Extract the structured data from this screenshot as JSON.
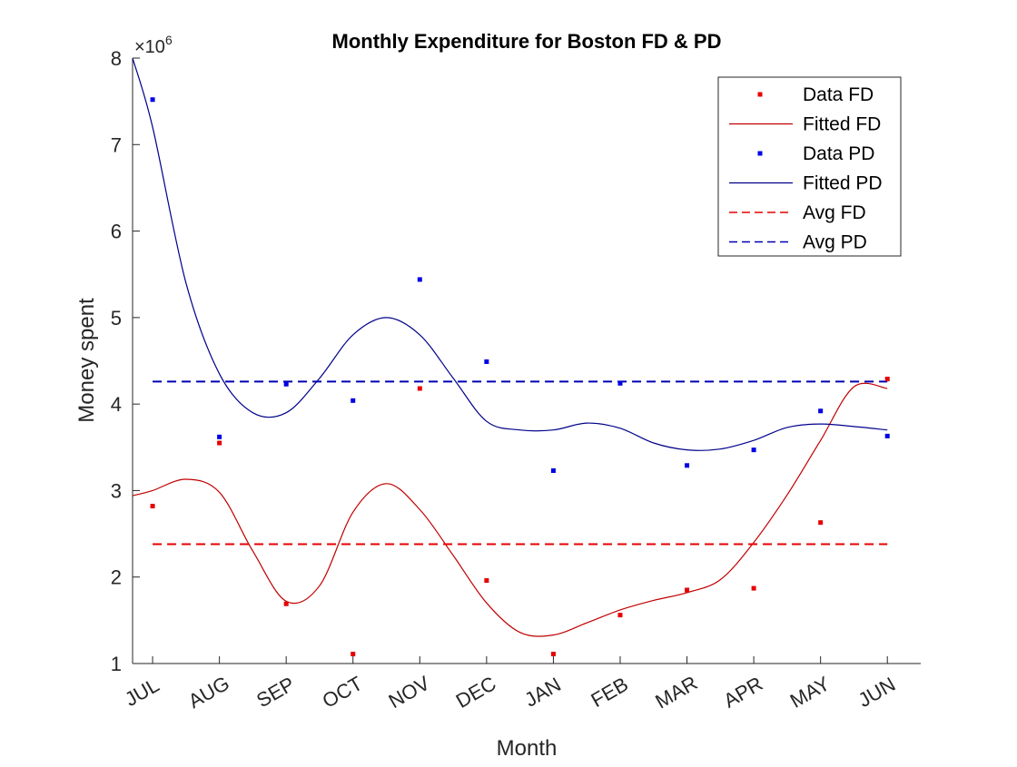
{
  "chart_data": {
    "type": "line",
    "title": "Monthly Expenditure for Boston FD & PD",
    "xlabel": "Month",
    "ylabel": "Money spent",
    "y_exponent_label": "×10",
    "y_exponent_power": "6",
    "categories": [
      "JUL",
      "AUG",
      "SEP",
      "OCT",
      "NOV",
      "DEC",
      "JAN",
      "FEB",
      "MAR",
      "APR",
      "MAY",
      "JUN"
    ],
    "xlim": [
      0.7,
      12.5
    ],
    "ylim": [
      1,
      8
    ],
    "yticks": [
      1,
      2,
      3,
      4,
      5,
      6,
      7,
      8
    ],
    "ytick_labels": [
      "1",
      "2",
      "3",
      "4",
      "5",
      "6",
      "7",
      "8"
    ],
    "grid": false,
    "legend_position": "top-right",
    "colors": {
      "fd": "#e60000",
      "pd": "#0000e6",
      "fd_line": "#c00000",
      "pd_line": "#00008b",
      "axis": "#262626"
    },
    "series": [
      {
        "name": "Data FD",
        "kind": "points",
        "color": "#e60000",
        "values": [
          2.82,
          3.55,
          1.69,
          1.11,
          4.18,
          1.96,
          1.11,
          1.56,
          1.85,
          1.87,
          2.63,
          4.29
        ]
      },
      {
        "name": "Fitted FD",
        "kind": "line",
        "style": "solid",
        "color": "#c00000",
        "x": [
          0.7,
          1,
          1.5,
          2,
          2.5,
          3,
          3.5,
          4,
          4.5,
          5,
          5.5,
          6,
          6.5,
          7,
          7.5,
          8,
          8.5,
          9,
          9.5,
          10,
          10.5,
          11,
          11.5,
          12
        ],
        "values": [
          2.94,
          3.0,
          3.13,
          2.98,
          2.3,
          1.72,
          1.9,
          2.75,
          3.08,
          2.78,
          2.25,
          1.7,
          1.36,
          1.33,
          1.47,
          1.62,
          1.73,
          1.82,
          1.97,
          2.4,
          2.95,
          3.58,
          4.2,
          4.18
        ]
      },
      {
        "name": "Data PD",
        "kind": "points",
        "color": "#0000e6",
        "values": [
          7.52,
          3.62,
          4.23,
          4.04,
          5.44,
          4.49,
          3.23,
          4.24,
          3.29,
          3.47,
          3.92,
          3.63
        ]
      },
      {
        "name": "Fitted PD",
        "kind": "line",
        "style": "solid",
        "color": "#00008b",
        "x": [
          0.7,
          1,
          1.5,
          2,
          2.5,
          3,
          3.5,
          4,
          4.5,
          5,
          5.5,
          6,
          6.5,
          7,
          7.5,
          8,
          8.5,
          9,
          9.5,
          10,
          10.5,
          11,
          11.5,
          12
        ],
        "values": [
          8.0,
          7.2,
          5.4,
          4.35,
          3.9,
          3.9,
          4.3,
          4.8,
          5.0,
          4.8,
          4.3,
          3.8,
          3.7,
          3.7,
          3.78,
          3.72,
          3.55,
          3.47,
          3.48,
          3.58,
          3.73,
          3.77,
          3.74,
          3.7
        ]
      },
      {
        "name": "Avg FD",
        "kind": "line",
        "style": "dashed",
        "color": "#e60000",
        "x": [
          1,
          12
        ],
        "values": [
          2.38,
          2.38
        ]
      },
      {
        "name": "Avg PD",
        "kind": "line",
        "style": "dashed",
        "color": "#0000b3",
        "x": [
          1,
          12
        ],
        "values": [
          4.26,
          4.26
        ]
      }
    ]
  }
}
